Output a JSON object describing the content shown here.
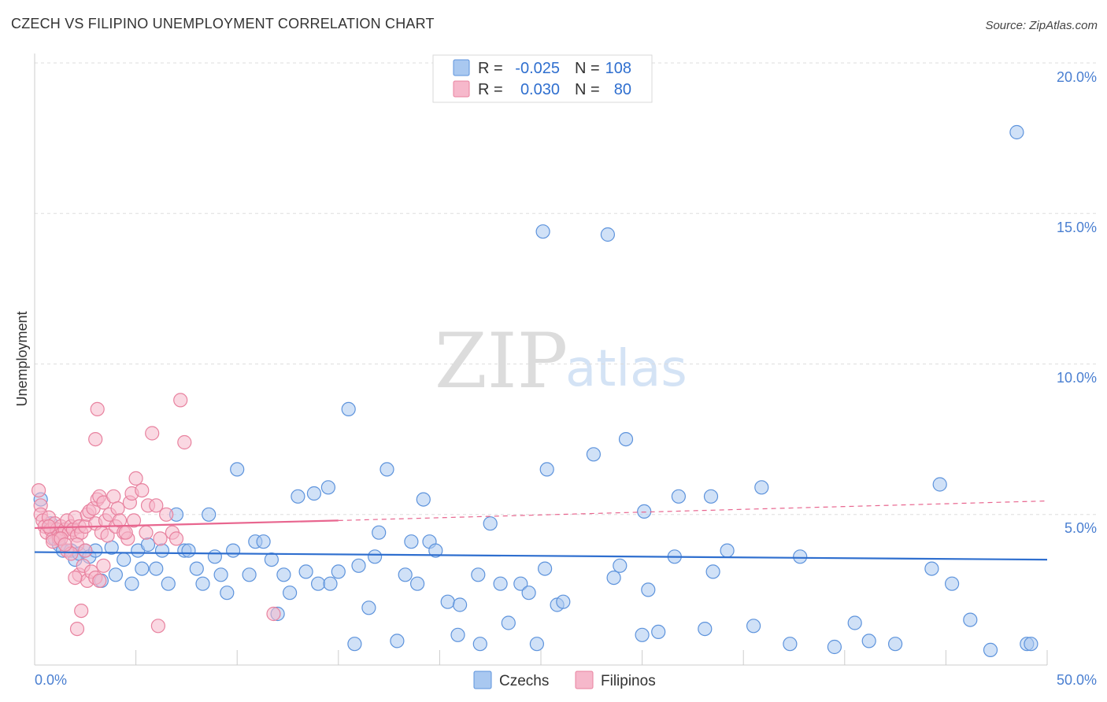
{
  "chart_data": {
    "type": "scatter",
    "title": "CZECH VS FILIPINO UNEMPLOYMENT CORRELATION CHART",
    "source": "Source: ZipAtlas.com",
    "xlabel": "",
    "ylabel": "Unemployment",
    "xlim": [
      0,
      50
    ],
    "ylim": [
      0,
      20
    ],
    "x_tick_labels": [
      "0.0%",
      "50.0%"
    ],
    "y_tick_values": [
      5,
      10,
      15,
      20
    ],
    "y_tick_labels": [
      "5.0%",
      "10.0%",
      "15.0%",
      "20.0%"
    ],
    "legend_top": [
      {
        "series": "Czechs",
        "r_label": "R =",
        "r_value": "-0.025",
        "n_label": "N =",
        "n_value": "108"
      },
      {
        "series": "Filipinos",
        "r_label": "R =",
        "r_value": "0.030",
        "n_label": "N =",
        "n_value": "80"
      }
    ],
    "legend_bottom": [
      "Czechs",
      "Filipinos"
    ],
    "watermark": {
      "zip": "ZIP",
      "atlas": "atlas"
    },
    "colors": {
      "czechs_fill": "#a9c8f0",
      "czechs_stroke": "#5d93dc",
      "czechs_line": "#2f6fcf",
      "filipinos_fill": "#f6b8cb",
      "filipinos_stroke": "#e8829f",
      "filipinos_line": "#e8668f",
      "grid": "#dddddd",
      "axis_text": "#4a7fd1"
    },
    "trend_czechs": {
      "x0": 0,
      "y0": 3.75,
      "x1": 50,
      "y1": 3.5
    },
    "trend_filipinos_solid": {
      "x0": 0,
      "y0": 4.55,
      "x1": 15,
      "y1": 4.8
    },
    "trend_filipinos_dashed": {
      "x0": 15,
      "y0": 4.8,
      "x1": 50,
      "y1": 5.45
    },
    "series": [
      {
        "name": "Czechs",
        "points": [
          [
            0.3,
            5.5
          ],
          [
            0.8,
            4.7
          ],
          [
            1.0,
            4.2
          ],
          [
            1.2,
            4.0
          ],
          [
            1.4,
            3.8
          ],
          [
            1.8,
            3.8
          ],
          [
            2.0,
            3.5
          ],
          [
            2.2,
            3.7
          ],
          [
            2.5,
            3.8
          ],
          [
            2.7,
            3.6
          ],
          [
            3.0,
            3.8
          ],
          [
            3.3,
            2.8
          ],
          [
            3.8,
            3.9
          ],
          [
            4.0,
            3.0
          ],
          [
            4.4,
            3.5
          ],
          [
            4.8,
            2.7
          ],
          [
            5.1,
            3.8
          ],
          [
            5.3,
            3.2
          ],
          [
            5.6,
            4.0
          ],
          [
            6.0,
            3.2
          ],
          [
            6.3,
            3.8
          ],
          [
            6.6,
            2.7
          ],
          [
            7.0,
            5.0
          ],
          [
            7.4,
            3.8
          ],
          [
            7.6,
            3.8
          ],
          [
            8.0,
            3.2
          ],
          [
            8.3,
            2.7
          ],
          [
            8.6,
            5.0
          ],
          [
            8.9,
            3.6
          ],
          [
            9.2,
            3.0
          ],
          [
            9.5,
            2.4
          ],
          [
            9.8,
            3.8
          ],
          [
            10.0,
            6.5
          ],
          [
            10.6,
            3.0
          ],
          [
            10.9,
            4.1
          ],
          [
            11.3,
            4.1
          ],
          [
            11.7,
            3.5
          ],
          [
            12.0,
            1.7
          ],
          [
            12.3,
            3.0
          ],
          [
            12.6,
            2.4
          ],
          [
            13.0,
            5.6
          ],
          [
            13.4,
            3.1
          ],
          [
            13.8,
            5.7
          ],
          [
            14.0,
            2.7
          ],
          [
            14.5,
            5.9
          ],
          [
            14.6,
            2.7
          ],
          [
            15.0,
            3.1
          ],
          [
            15.5,
            8.5
          ],
          [
            15.8,
            0.7
          ],
          [
            16.0,
            3.3
          ],
          [
            16.5,
            1.9
          ],
          [
            16.8,
            3.6
          ],
          [
            17.0,
            4.4
          ],
          [
            17.4,
            6.5
          ],
          [
            17.9,
            0.8
          ],
          [
            18.3,
            3.0
          ],
          [
            18.6,
            4.1
          ],
          [
            18.9,
            2.7
          ],
          [
            19.2,
            5.5
          ],
          [
            19.5,
            4.1
          ],
          [
            19.8,
            3.8
          ],
          [
            20.4,
            2.1
          ],
          [
            20.9,
            1.0
          ],
          [
            21.0,
            2.0
          ],
          [
            21.9,
            3.0
          ],
          [
            22.0,
            0.7
          ],
          [
            22.5,
            4.7
          ],
          [
            23.0,
            2.7
          ],
          [
            23.4,
            1.4
          ],
          [
            24.0,
            2.7
          ],
          [
            24.4,
            2.4
          ],
          [
            24.8,
            0.7
          ],
          [
            25.2,
            3.2
          ],
          [
            25.8,
            2.0
          ],
          [
            25.1,
            14.4
          ],
          [
            25.3,
            6.5
          ],
          [
            26.1,
            2.1
          ],
          [
            27.6,
            7.0
          ],
          [
            28.3,
            14.3
          ],
          [
            28.6,
            2.9
          ],
          [
            28.9,
            3.3
          ],
          [
            29.2,
            7.5
          ],
          [
            30.0,
            1.0
          ],
          [
            30.1,
            5.1
          ],
          [
            30.3,
            2.5
          ],
          [
            30.8,
            1.1
          ],
          [
            31.6,
            3.6
          ],
          [
            31.8,
            5.6
          ],
          [
            33.1,
            1.2
          ],
          [
            33.4,
            5.6
          ],
          [
            33.5,
            3.1
          ],
          [
            34.2,
            3.8
          ],
          [
            35.5,
            1.3
          ],
          [
            35.9,
            5.9
          ],
          [
            37.3,
            0.7
          ],
          [
            37.8,
            3.6
          ],
          [
            39.5,
            0.6
          ],
          [
            40.5,
            1.4
          ],
          [
            41.2,
            0.8
          ],
          [
            42.5,
            0.7
          ],
          [
            44.3,
            3.2
          ],
          [
            44.7,
            6.0
          ],
          [
            45.3,
            2.7
          ],
          [
            46.2,
            1.5
          ],
          [
            47.2,
            0.5
          ],
          [
            48.5,
            17.7
          ],
          [
            49.0,
            0.7
          ],
          [
            49.2,
            0.7
          ]
        ]
      },
      {
        "name": "Filipinos",
        "points": [
          [
            0.2,
            5.8
          ],
          [
            0.3,
            5.3
          ],
          [
            0.3,
            5.0
          ],
          [
            0.4,
            4.8
          ],
          [
            0.5,
            4.6
          ],
          [
            0.6,
            4.4
          ],
          [
            0.7,
            4.9
          ],
          [
            0.8,
            4.5
          ],
          [
            0.9,
            4.2
          ],
          [
            1.0,
            4.7
          ],
          [
            1.1,
            4.5
          ],
          [
            1.2,
            4.3
          ],
          [
            1.3,
            4.6
          ],
          [
            1.4,
            4.4
          ],
          [
            1.5,
            4.5
          ],
          [
            1.6,
            4.8
          ],
          [
            1.7,
            4.4
          ],
          [
            1.8,
            4.6
          ],
          [
            1.9,
            4.5
          ],
          [
            2.0,
            4.9
          ],
          [
            2.1,
            4.3
          ],
          [
            2.2,
            4.6
          ],
          [
            2.3,
            4.4
          ],
          [
            2.5,
            4.6
          ],
          [
            2.6,
            5.0
          ],
          [
            2.7,
            5.1
          ],
          [
            2.9,
            5.2
          ],
          [
            3.0,
            4.7
          ],
          [
            3.1,
            5.5
          ],
          [
            3.2,
            5.6
          ],
          [
            3.3,
            4.4
          ],
          [
            3.4,
            5.4
          ],
          [
            3.5,
            4.8
          ],
          [
            3.6,
            4.3
          ],
          [
            3.7,
            5.0
          ],
          [
            3.9,
            5.6
          ],
          [
            4.0,
            4.6
          ],
          [
            4.1,
            5.2
          ],
          [
            4.2,
            4.8
          ],
          [
            4.4,
            4.4
          ],
          [
            4.6,
            4.2
          ],
          [
            4.7,
            5.4
          ],
          [
            4.8,
            5.7
          ],
          [
            4.9,
            4.8
          ],
          [
            5.0,
            6.2
          ],
          [
            5.3,
            5.8
          ],
          [
            5.5,
            4.4
          ],
          [
            5.6,
            5.3
          ],
          [
            5.8,
            7.7
          ],
          [
            6.0,
            5.3
          ],
          [
            6.5,
            5.0
          ],
          [
            6.8,
            4.4
          ],
          [
            7.0,
            4.2
          ],
          [
            7.2,
            8.8
          ],
          [
            7.4,
            7.4
          ],
          [
            3.1,
            8.5
          ],
          [
            3.0,
            7.5
          ],
          [
            2.2,
            3.0
          ],
          [
            2.4,
            3.3
          ],
          [
            2.6,
            2.8
          ],
          [
            2.8,
            3.1
          ],
          [
            3.0,
            2.9
          ],
          [
            3.4,
            3.3
          ],
          [
            3.2,
            2.8
          ],
          [
            2.1,
            4.0
          ],
          [
            2.5,
            3.8
          ],
          [
            1.6,
            3.8
          ],
          [
            1.8,
            3.7
          ],
          [
            1.2,
            4.2
          ],
          [
            0.9,
            4.1
          ],
          [
            0.7,
            4.6
          ],
          [
            1.3,
            4.2
          ],
          [
            1.5,
            4.0
          ],
          [
            2.0,
            2.9
          ],
          [
            2.3,
            1.8
          ],
          [
            2.1,
            1.2
          ],
          [
            6.1,
            1.3
          ],
          [
            11.8,
            1.7
          ],
          [
            6.2,
            4.2
          ],
          [
            4.5,
            4.4
          ]
        ]
      }
    ]
  }
}
